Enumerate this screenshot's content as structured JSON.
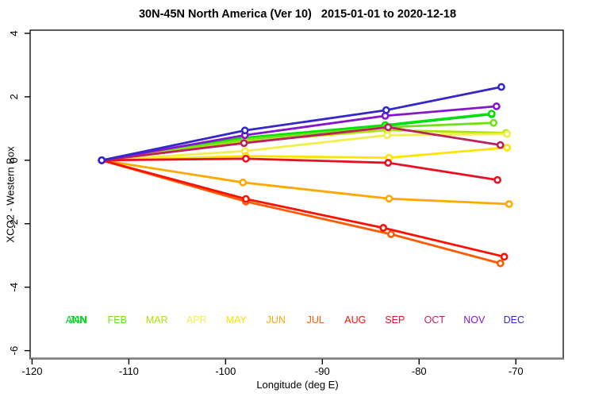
{
  "title": "30N-45N North America (Ver 10)   2015-01-01 to 2020-12-18",
  "chart_data": {
    "type": "line",
    "title": "30N-45N North America (Ver 10)   2015-01-01 to 2020-12-18",
    "xlabel": "Longitude (deg E)",
    "ylabel": "XCO2 - Western Box",
    "xlim": [
      -120.2,
      -65.1
    ],
    "ylim": [
      -6.26,
      4.1
    ],
    "xticks": [
      -120,
      -110,
      -100,
      -90,
      -80,
      -70
    ],
    "yticks": [
      -6,
      -4,
      -2,
      0,
      2,
      4
    ],
    "grid": false,
    "marker": "open-circle",
    "axis_color": "#000000",
    "bottom_axis_gray": "#7e7e7e",
    "legend": {
      "position": "inside-bottom",
      "y_value": -5.13,
      "items": [
        {
          "label": "ANN",
          "color": "#00C43C",
          "lon": -115.45
        },
        {
          "label": "JAN",
          "color": "#00E400",
          "lon": -115.25
        },
        {
          "label": "FEB",
          "color": "#70E018",
          "lon": -111.2
        },
        {
          "label": "MAR",
          "color": "#ABE30A",
          "lon": -107.1
        },
        {
          "label": "APR",
          "color": "#F2EE4E",
          "lon": -103.0
        },
        {
          "label": "MAY",
          "color": "#FFE400",
          "lon": -98.9
        },
        {
          "label": "JUN",
          "color": "#FFA800",
          "lon": -94.8
        },
        {
          "label": "JUL",
          "color": "#FF5A00",
          "lon": -90.7
        },
        {
          "label": "AUG",
          "color": "#FF0F00",
          "lon": -86.6
        },
        {
          "label": "SEP",
          "color": "#E81123",
          "lon": -82.5
        },
        {
          "label": "OCT",
          "color": "#BC2060",
          "lon": -78.4
        },
        {
          "label": "NOV",
          "color": "#8516CE",
          "lon": -74.3
        },
        {
          "label": "DEC",
          "color": "#3528C8",
          "lon": -70.2
        }
      ]
    },
    "series": [
      {
        "name": "ANN",
        "color": "#00C43C",
        "x": [
          -112.8,
          -98.1,
          -83.5,
          -72.5
        ],
        "y": [
          0,
          0.7,
          1.09,
          1.45
        ]
      },
      {
        "name": "JAN",
        "color": "#00E400",
        "x": [
          -112.8,
          -98.1,
          -83.5,
          -72.5
        ],
        "y": [
          0,
          0.71,
          1.11,
          1.47
        ]
      },
      {
        "name": "FEB",
        "color": "#70E018",
        "x": [
          -112.8,
          -98.0,
          -83.4,
          -72.3
        ],
        "y": [
          0,
          0.66,
          1.04,
          1.18
        ]
      },
      {
        "name": "MAR",
        "color": "#ABE30A",
        "x": [
          -112.8,
          -98.0,
          -83.3,
          -71.0
        ],
        "y": [
          0,
          0.59,
          0.95,
          0.86
        ]
      },
      {
        "name": "APR",
        "color": "#F2EE4E",
        "x": [
          -112.8,
          -98.0,
          -83.3,
          -70.9
        ],
        "y": [
          0,
          0.29,
          0.79,
          0.83
        ]
      },
      {
        "name": "MAY",
        "color": "#FFE400",
        "x": [
          -112.8,
          -97.9,
          -83.1,
          -70.9
        ],
        "y": [
          0,
          0.13,
          0.08,
          0.4
        ]
      },
      {
        "name": "JUN",
        "color": "#FFA800",
        "x": [
          -112.8,
          -98.2,
          -83.1,
          -70.7
        ],
        "y": [
          0,
          -0.7,
          -1.21,
          -1.38
        ]
      },
      {
        "name": "JUL",
        "color": "#FF5A00",
        "x": [
          -112.8,
          -97.9,
          -82.9,
          -71.6
        ],
        "y": [
          0,
          -1.3,
          -2.33,
          -3.25
        ]
      },
      {
        "name": "AUG",
        "color": "#FF0F00",
        "x": [
          -112.8,
          -97.9,
          -83.7,
          -71.2
        ],
        "y": [
          0,
          -1.22,
          -2.13,
          -3.04
        ]
      },
      {
        "name": "SEP",
        "color": "#E81123",
        "x": [
          -112.8,
          -97.9,
          -83.2,
          -71.9
        ],
        "y": [
          0,
          0.05,
          -0.08,
          -0.62
        ]
      },
      {
        "name": "OCT",
        "color": "#BC2060",
        "x": [
          -112.8,
          -98.1,
          -83.2,
          -71.6
        ],
        "y": [
          0,
          0.54,
          1.04,
          0.48
        ]
      },
      {
        "name": "NOV",
        "color": "#8516CE",
        "x": [
          -112.8,
          -98.0,
          -83.5,
          -72.0
        ],
        "y": [
          0,
          0.79,
          1.4,
          1.7
        ]
      },
      {
        "name": "DEC",
        "color": "#3528C8",
        "x": [
          -112.8,
          -98.0,
          -83.4,
          -71.5
        ],
        "y": [
          0,
          0.94,
          1.58,
          2.31
        ]
      }
    ]
  }
}
